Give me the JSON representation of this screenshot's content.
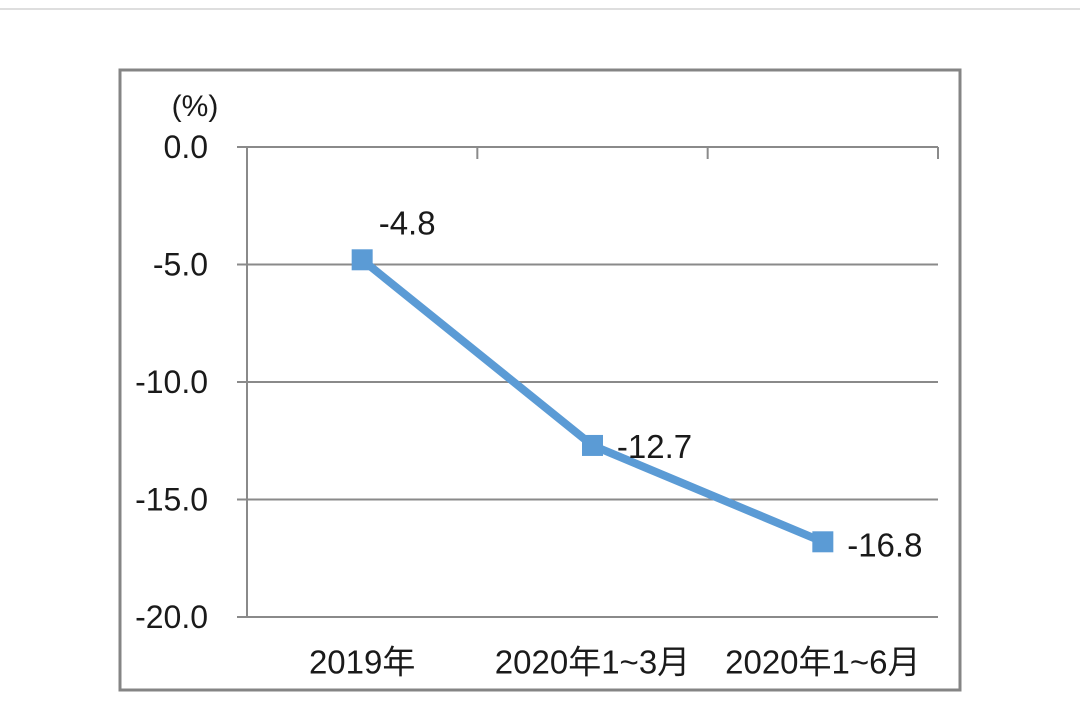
{
  "chart_data": {
    "type": "line",
    "title": "",
    "unit_label": "(%)",
    "categories": [
      "2019年",
      "2020年1~3月",
      "2020年1~6月"
    ],
    "values": [
      -4.8,
      -12.7,
      -16.8
    ],
    "data_labels": [
      "-4.8",
      "-12.7",
      "-16.8"
    ],
    "yticks": [
      0,
      -5,
      -10,
      -15,
      -20
    ],
    "ytick_labels": [
      "0.0",
      "-5.0",
      "-10.0",
      "-15.0",
      "-20.0"
    ],
    "ylim": [
      0,
      -20
    ],
    "xlabel": "",
    "ylabel": "(%)",
    "grid": true,
    "legend": "none",
    "marker": "square",
    "colors": {
      "line": "#5B9BD5",
      "grid": "#8a8a8a",
      "frame": "#858585",
      "text": "#1a1a1a"
    }
  }
}
